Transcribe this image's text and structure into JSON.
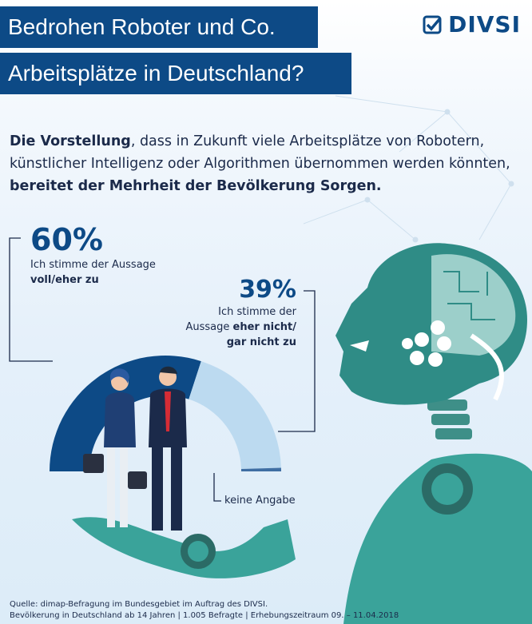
{
  "header": {
    "title_line1": "Bedrohen Roboter und Co.",
    "title_line2": "Arbeitsplätze in Deutschland?",
    "logo_text": "DIVSI"
  },
  "intro": {
    "part1": "Die Vorstellung",
    "part2": ", dass in Zukunft viele Arbeitsplätze von Robotern, künstlicher Intelligenz oder Algorithmen übernommen werden könnten, ",
    "part3": "bereitet der Mehrheit der Bevölkerung Sorgen."
  },
  "chart_data": {
    "type": "pie",
    "categories": [
      "voll/eher zu",
      "eher nicht/gar nicht zu",
      "keine Angabe"
    ],
    "values": [
      60,
      39,
      1
    ],
    "labels": {
      "agree_value": "60%",
      "agree_text_1": "Ich stimme der Aussage",
      "agree_text_2": "voll/eher zu",
      "disagree_value": "39%",
      "disagree_text_1": "Ich stimme der",
      "disagree_text_2a": "Aussage ",
      "disagree_text_2b": "eher nicht/",
      "disagree_text_3": "gar nicht zu",
      "no_answer_text": "keine Angabe"
    },
    "colors": [
      "#0d4a86",
      "#bcdaf0",
      "#3f6ea3"
    ]
  },
  "source": {
    "line1": "Quelle: dimap-Befragung im Bundesgebiet im Auftrag des DIVSI.",
    "line2": "Bevölkerung in Deutschland ab 14 Jahren | 1.005 Befragte | Erhebungszeitraum 09. – 11.04.2018"
  }
}
